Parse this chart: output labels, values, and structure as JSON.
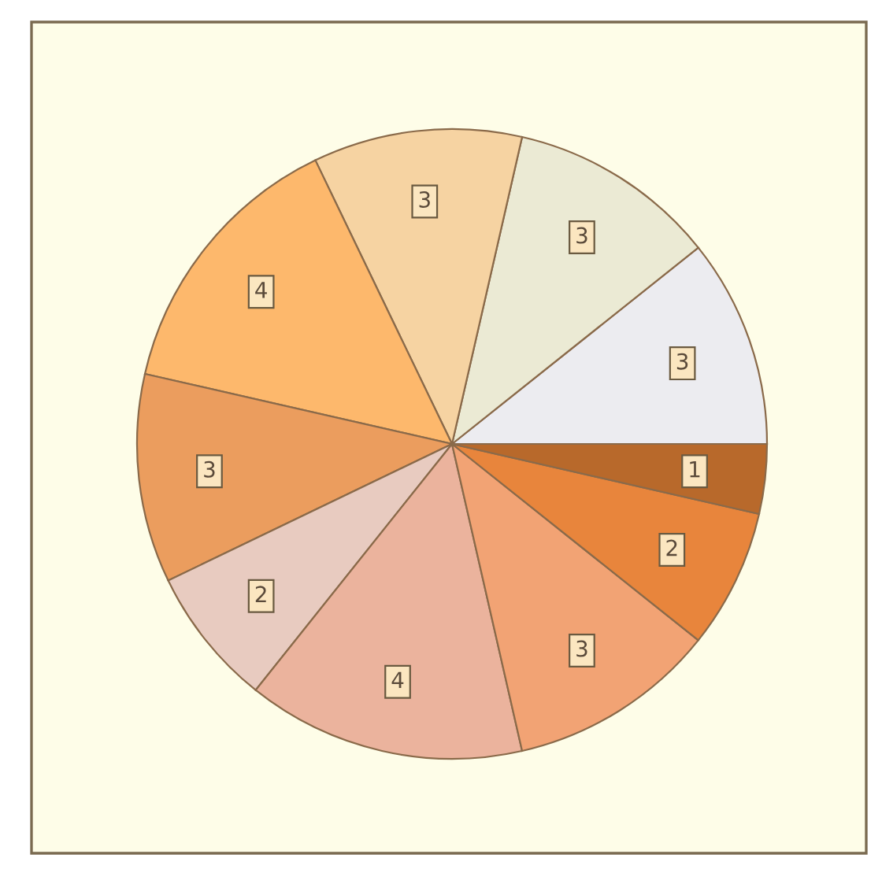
{
  "chart_data": {
    "type": "pie",
    "categories": [
      null,
      null,
      null,
      null,
      null,
      null,
      null,
      null,
      null,
      null
    ],
    "values": [
      3,
      3,
      3,
      4,
      3,
      2,
      4,
      3,
      2,
      1
    ],
    "colors": [
      "#ececf0",
      "#ebead4",
      "#f6d3a2",
      "#fdb86c",
      "#eb9d5e",
      "#e8cbc0",
      "#ebb39d",
      "#f2a374",
      "#e8853c",
      "#b8692b"
    ],
    "data_labels": true
  }
}
